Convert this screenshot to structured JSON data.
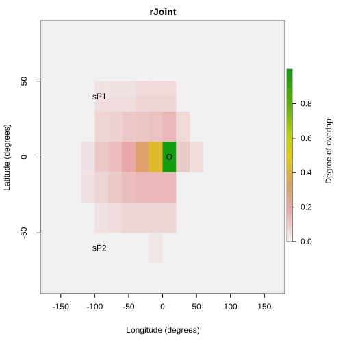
{
  "chart_data": {
    "type": "heatmap",
    "title": "rJoint",
    "xlabel": "Longitude (degrees)",
    "ylabel": "Latitude (degrees)",
    "xlim": [
      -180,
      180
    ],
    "ylim": [
      -90,
      90
    ],
    "x_ticks": [
      -150,
      -100,
      -50,
      0,
      50,
      100,
      150
    ],
    "x_tick_labels": [
      "-150",
      "-100",
      "-50",
      "0",
      "50",
      "100",
      "150"
    ],
    "y_ticks": [
      50,
      0,
      -50
    ],
    "y_tick_labels": [
      "50",
      "0",
      "-50"
    ],
    "background_color": "#f0f0f0",
    "cells": [
      {
        "lon": [
          -100,
          -80
        ],
        "lat": [
          40,
          50
        ],
        "value": 0.04
      },
      {
        "lon": [
          -80,
          -60
        ],
        "lat": [
          40,
          50
        ],
        "value": 0.04
      },
      {
        "lon": [
          -60,
          -40
        ],
        "lat": [
          40,
          50
        ],
        "value": 0.04
      },
      {
        "lon": [
          -40,
          -20
        ],
        "lat": [
          40,
          50
        ],
        "value": 0.06
      },
      {
        "lon": [
          -20,
          0
        ],
        "lat": [
          40,
          50
        ],
        "value": 0.06
      },
      {
        "lon": [
          0,
          20
        ],
        "lat": [
          40,
          50
        ],
        "value": 0.06
      },
      {
        "lon": [
          -100,
          -80
        ],
        "lat": [
          30,
          40
        ],
        "value": 0.05
      },
      {
        "lon": [
          -80,
          -60
        ],
        "lat": [
          30,
          40
        ],
        "value": 0.05
      },
      {
        "lon": [
          -60,
          -40
        ],
        "lat": [
          30,
          40
        ],
        "value": 0.05
      },
      {
        "lon": [
          -40,
          -20
        ],
        "lat": [
          30,
          40
        ],
        "value": 0.07
      },
      {
        "lon": [
          -20,
          0
        ],
        "lat": [
          30,
          40
        ],
        "value": 0.07
      },
      {
        "lon": [
          0,
          20
        ],
        "lat": [
          30,
          40
        ],
        "value": 0.07
      },
      {
        "lon": [
          -100,
          -80
        ],
        "lat": [
          10,
          30
        ],
        "value": 0.07
      },
      {
        "lon": [
          -80,
          -60
        ],
        "lat": [
          10,
          30
        ],
        "value": 0.08
      },
      {
        "lon": [
          -60,
          -40
        ],
        "lat": [
          10,
          30
        ],
        "value": 0.1
      },
      {
        "lon": [
          -40,
          -20
        ],
        "lat": [
          10,
          30
        ],
        "value": 0.11
      },
      {
        "lon": [
          -20,
          0
        ],
        "lat": [
          10,
          30
        ],
        "value": 0.12
      },
      {
        "lon": [
          0,
          20
        ],
        "lat": [
          10,
          30
        ],
        "value": 0.14
      },
      {
        "lon": [
          20,
          40
        ],
        "lat": [
          10,
          30
        ],
        "value": 0.06
      },
      {
        "lon": [
          -120,
          -100
        ],
        "lat": [
          -10,
          10
        ],
        "value": 0.04
      },
      {
        "lon": [
          -100,
          -80
        ],
        "lat": [
          -10,
          10
        ],
        "value": 0.1
      },
      {
        "lon": [
          -80,
          -60
        ],
        "lat": [
          -10,
          10
        ],
        "value": 0.13
      },
      {
        "lon": [
          -60,
          -40
        ],
        "lat": [
          -10,
          10
        ],
        "value": 0.18
      },
      {
        "lon": [
          -40,
          -20
        ],
        "lat": [
          -10,
          10
        ],
        "value": 0.3
      },
      {
        "lon": [
          -20,
          0
        ],
        "lat": [
          -10,
          10
        ],
        "value": 0.42
      },
      {
        "lon": [
          0,
          20
        ],
        "lat": [
          -10,
          10
        ],
        "value": 0.99
      },
      {
        "lon": [
          20,
          40
        ],
        "lat": [
          -10,
          10
        ],
        "value": 0.1
      },
      {
        "lon": [
          40,
          60
        ],
        "lat": [
          -10,
          10
        ],
        "value": 0.05
      },
      {
        "lon": [
          -120,
          -100
        ],
        "lat": [
          -30,
          -10
        ],
        "value": 0.04
      },
      {
        "lon": [
          -100,
          -80
        ],
        "lat": [
          -30,
          -10
        ],
        "value": 0.07
      },
      {
        "lon": [
          -80,
          -60
        ],
        "lat": [
          -30,
          -10
        ],
        "value": 0.1
      },
      {
        "lon": [
          -60,
          -40
        ],
        "lat": [
          -30,
          -10
        ],
        "value": 0.13
      },
      {
        "lon": [
          -40,
          -20
        ],
        "lat": [
          -30,
          -10
        ],
        "value": 0.14
      },
      {
        "lon": [
          -20,
          0
        ],
        "lat": [
          -30,
          -10
        ],
        "value": 0.14
      },
      {
        "lon": [
          0,
          20
        ],
        "lat": [
          -30,
          -10
        ],
        "value": 0.14
      },
      {
        "lon": [
          -100,
          -80
        ],
        "lat": [
          -50,
          -30
        ],
        "value": 0.04
      },
      {
        "lon": [
          -80,
          -60
        ],
        "lat": [
          -50,
          -30
        ],
        "value": 0.05
      },
      {
        "lon": [
          -60,
          -40
        ],
        "lat": [
          -50,
          -30
        ],
        "value": 0.07
      },
      {
        "lon": [
          -40,
          -20
        ],
        "lat": [
          -50,
          -30
        ],
        "value": 0.07
      },
      {
        "lon": [
          -20,
          0
        ],
        "lat": [
          -50,
          -30
        ],
        "value": 0.07
      },
      {
        "lon": [
          0,
          20
        ],
        "lat": [
          -50,
          -30
        ],
        "value": 0.07
      },
      {
        "lon": [
          -20,
          0
        ],
        "lat": [
          -70,
          -50
        ],
        "value": 0.03
      }
    ],
    "annotations": [
      {
        "text": "sP1",
        "lon": -93,
        "lat": 40
      },
      {
        "text": "sP2",
        "lon": -93,
        "lat": -60
      },
      {
        "text": "O",
        "lon": 10,
        "lat": 0
      }
    ],
    "colorbar": {
      "label": "Degree of overlap",
      "range": [
        0,
        1
      ],
      "ticks": [
        0.0,
        0.2,
        0.4,
        0.6,
        0.8
      ],
      "tick_labels": [
        "0.0",
        "0.2",
        "0.4",
        "0.6",
        "0.8"
      ],
      "stops": [
        {
          "v": 0.0,
          "color": "#f2f2f2"
        },
        {
          "v": 0.18,
          "color": "#e8a8a8"
        },
        {
          "v": 0.33,
          "color": "#dda060"
        },
        {
          "v": 0.5,
          "color": "#e0d000"
        },
        {
          "v": 0.62,
          "color": "#b8d200"
        },
        {
          "v": 0.8,
          "color": "#5ab000"
        },
        {
          "v": 1.0,
          "color": "#109a10"
        }
      ]
    }
  }
}
